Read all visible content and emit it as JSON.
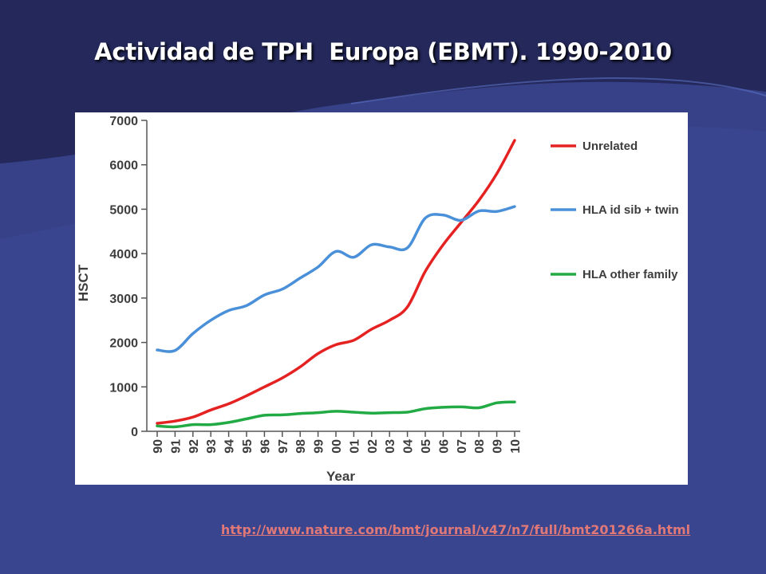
{
  "slide": {
    "title": "Actividad de TPH  Europa (EBMT). 1990-2010",
    "source_url": "http://www.nature.com/bmt/journal/v47/n7/full/bmt201266a.html"
  },
  "colors": {
    "background": "#24285a",
    "unrelated": "#e52222",
    "hla_id_sib_twin": "#4a90d9",
    "hla_other_family": "#22aa44"
  },
  "chart_data": {
    "type": "line",
    "title": "",
    "xlabel": "Year",
    "ylabel": "HSCT",
    "ylim": [
      0,
      7000
    ],
    "yticks": [
      0,
      1000,
      2000,
      3000,
      4000,
      5000,
      6000,
      7000
    ],
    "x": [
      "90",
      "91",
      "92",
      "93",
      "94",
      "95",
      "96",
      "97",
      "98",
      "99",
      "00",
      "01",
      "02",
      "03",
      "04",
      "05",
      "06",
      "07",
      "08",
      "09",
      "10"
    ],
    "grid": false,
    "legend_position": "right",
    "series": [
      {
        "name": "Unrelated",
        "color": "#e52222",
        "values": [
          180,
          230,
          320,
          480,
          620,
          800,
          1000,
          1200,
          1450,
          1750,
          1950,
          2050,
          2300,
          2500,
          2800,
          3600,
          4200,
          4700,
          5200,
          5800,
          6550
        ]
      },
      {
        "name": "HLA id sib + twin",
        "color": "#4a90d9",
        "values": [
          1830,
          1820,
          2200,
          2500,
          2720,
          2830,
          3070,
          3200,
          3450,
          3700,
          4050,
          3920,
          4200,
          4150,
          4130,
          4800,
          4870,
          4750,
          4960,
          4950,
          5060
        ]
      },
      {
        "name": "HLA other family",
        "color": "#22aa44",
        "values": [
          120,
          100,
          150,
          150,
          200,
          280,
          360,
          370,
          400,
          420,
          450,
          430,
          410,
          420,
          430,
          510,
          540,
          550,
          530,
          640,
          660
        ]
      }
    ]
  }
}
